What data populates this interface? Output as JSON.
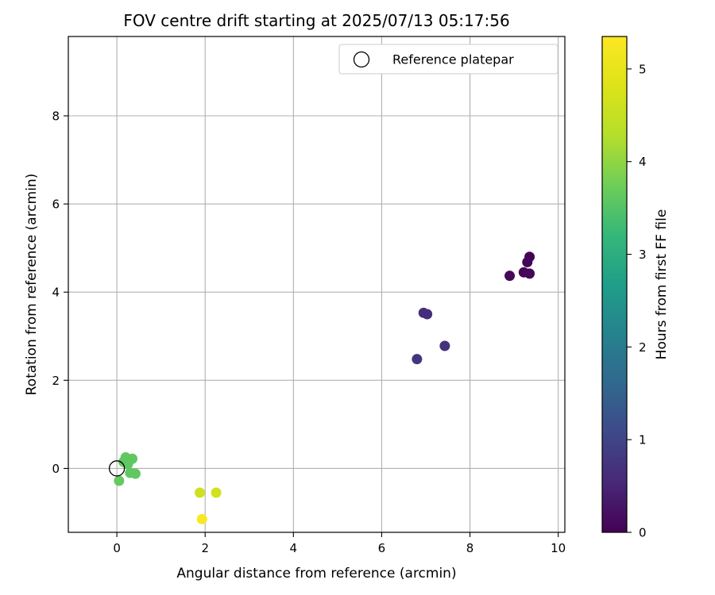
{
  "chart_data": {
    "type": "scatter",
    "title": "FOV centre drift starting at 2025/07/13 05:17:56",
    "xlabel": "Angular distance from reference (arcmin)",
    "ylabel": "Rotation from reference (arcmin)",
    "xlim": [
      -1.1,
      10.15
    ],
    "ylim": [
      -1.45,
      9.8
    ],
    "xticks": [
      "0",
      "2",
      "4",
      "6",
      "8",
      "10"
    ],
    "yticks": [
      "0",
      "2",
      "4",
      "6",
      "8"
    ],
    "grid": true,
    "colormap": "viridis",
    "colorbar": {
      "label": "Hours from first FF file",
      "range": [
        0,
        5.35
      ],
      "ticks": [
        "0",
        "1",
        "2",
        "3",
        "4",
        "5"
      ]
    },
    "legend": {
      "position": "top-right",
      "entries": [
        {
          "label": "Reference platepar",
          "marker": "open-circle"
        }
      ]
    },
    "reference_point": {
      "x": 0,
      "y": 0
    },
    "points": [
      {
        "x": 9.35,
        "y": 4.8,
        "hours": 0.02
      },
      {
        "x": 9.3,
        "y": 4.68,
        "hours": 0.04
      },
      {
        "x": 9.22,
        "y": 4.45,
        "hours": 0.06
      },
      {
        "x": 9.35,
        "y": 4.42,
        "hours": 0.08
      },
      {
        "x": 8.9,
        "y": 4.37,
        "hours": 0.1
      },
      {
        "x": 6.95,
        "y": 3.53,
        "hours": 0.6
      },
      {
        "x": 7.03,
        "y": 3.5,
        "hours": 0.62
      },
      {
        "x": 7.43,
        "y": 2.78,
        "hours": 0.7
      },
      {
        "x": 6.8,
        "y": 2.48,
        "hours": 0.75
      },
      {
        "x": 0.2,
        "y": 0.25,
        "hours": 3.6
      },
      {
        "x": 0.35,
        "y": 0.22,
        "hours": 3.6
      },
      {
        "x": 0.15,
        "y": 0.15,
        "hours": 3.6
      },
      {
        "x": 0.25,
        "y": 0.1,
        "hours": 3.6
      },
      {
        "x": 0.3,
        "y": -0.1,
        "hours": 3.6
      },
      {
        "x": 0.42,
        "y": -0.12,
        "hours": 3.6
      },
      {
        "x": 0.05,
        "y": -0.28,
        "hours": 3.65
      },
      {
        "x": 1.88,
        "y": -0.55,
        "hours": 4.6
      },
      {
        "x": 2.25,
        "y": -0.55,
        "hours": 4.65
      },
      {
        "x": 1.93,
        "y": -1.15,
        "hours": 5.3
      }
    ]
  }
}
